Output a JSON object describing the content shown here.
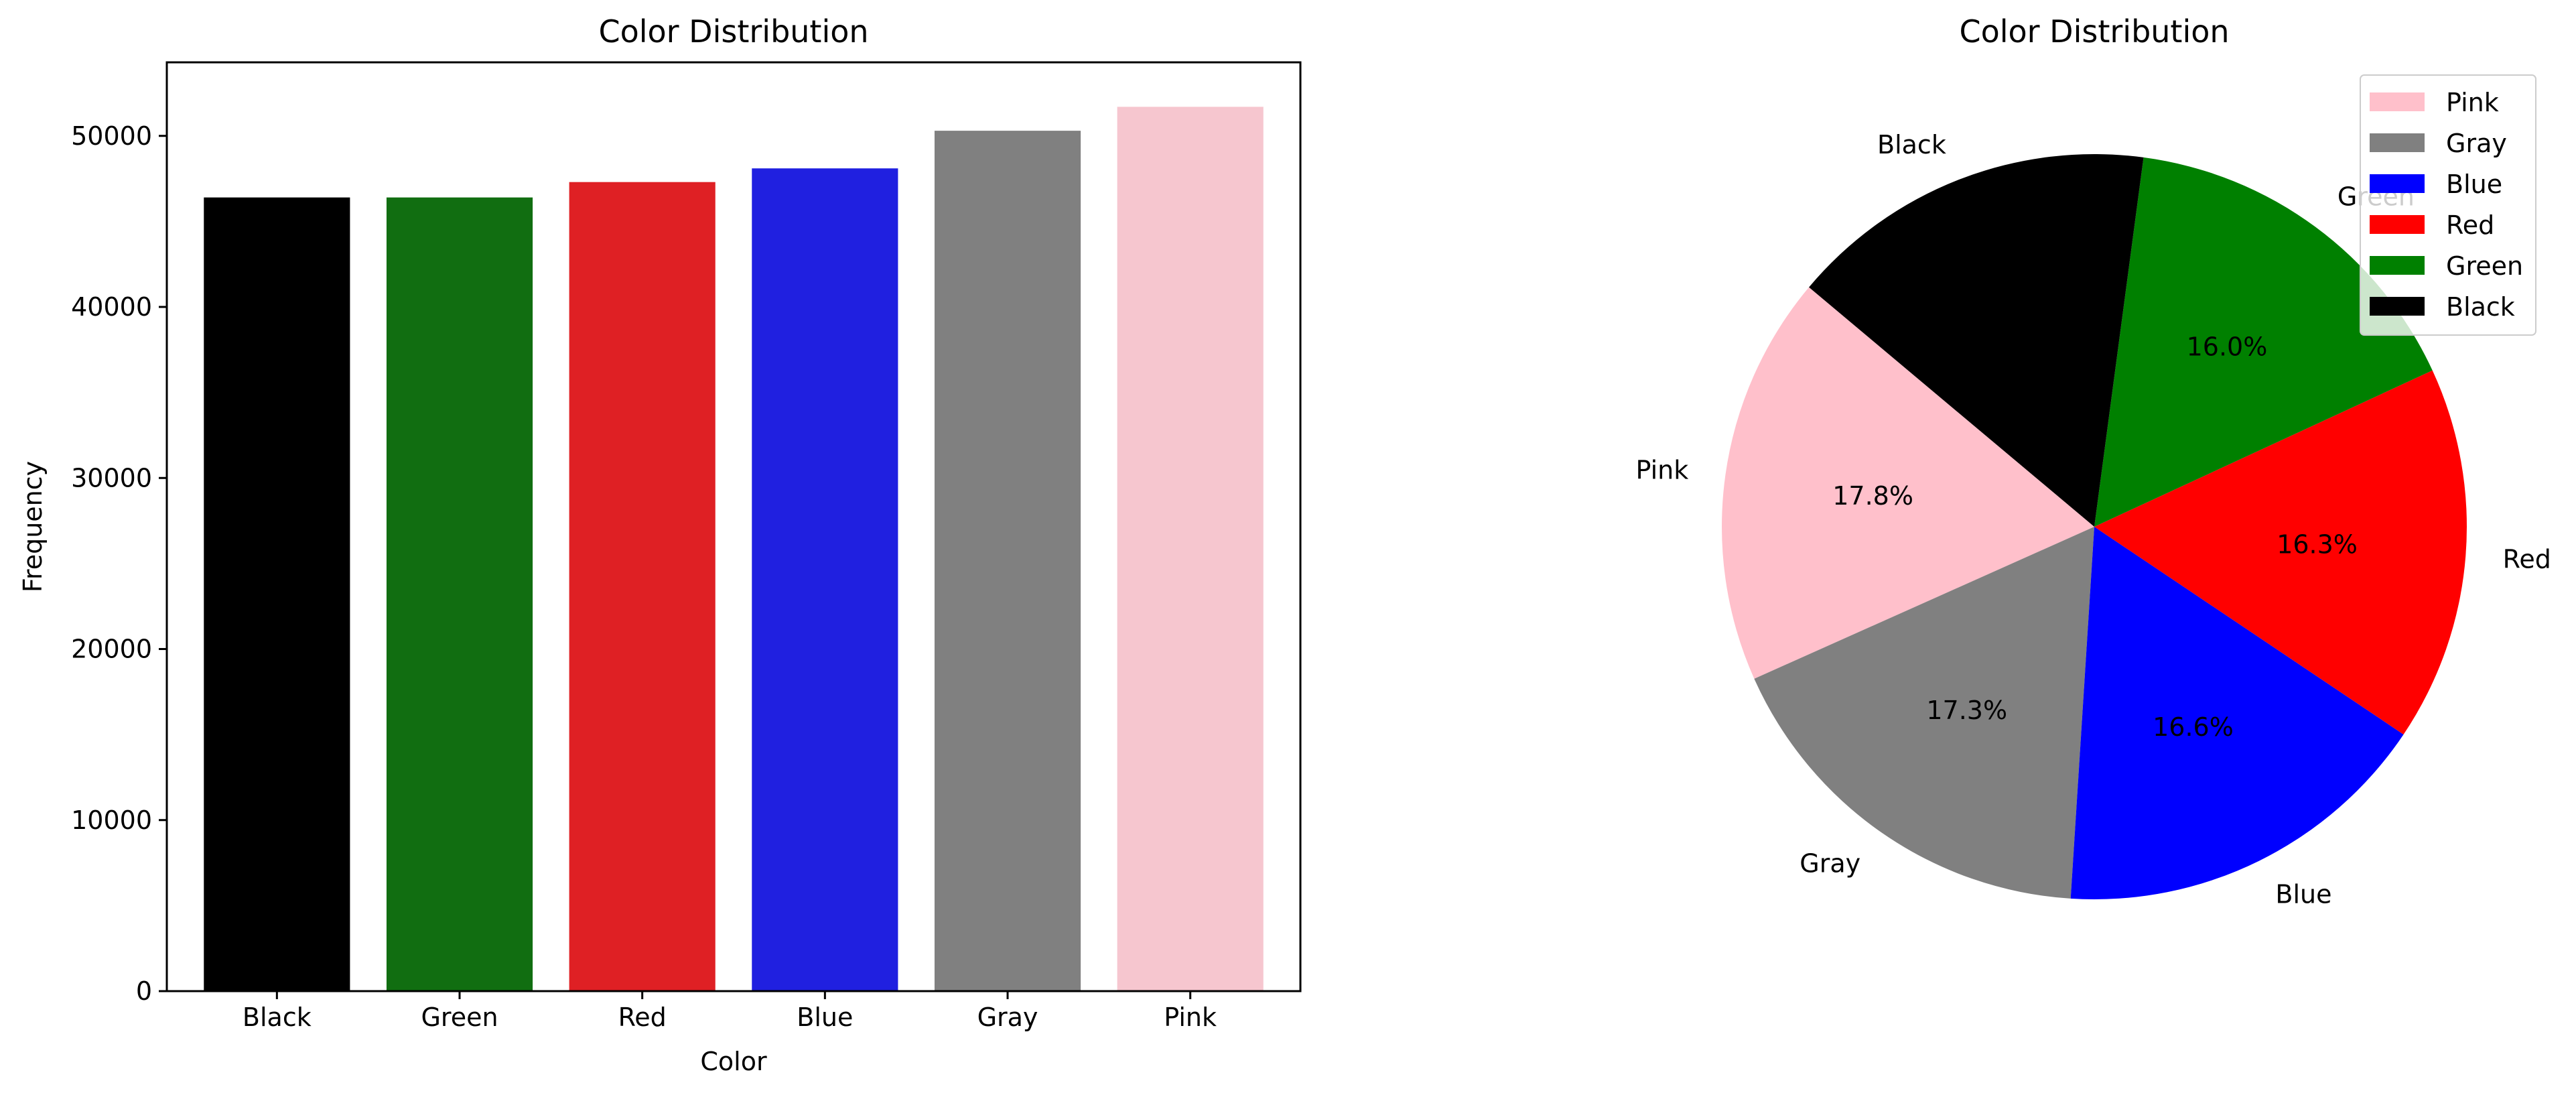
{
  "chart_data": [
    {
      "type": "bar",
      "title": "Color Distribution",
      "xlabel": "Color",
      "ylabel": "Frequency",
      "categories": [
        "Black",
        "Green",
        "Red",
        "Blue",
        "Gray",
        "Pink"
      ],
      "values": [
        46400,
        46400,
        47300,
        48100,
        50300,
        51700
      ],
      "colors": [
        "#000000",
        "#116e11",
        "#df2024",
        "#2020e0",
        "#808080",
        "#f6c6cf"
      ],
      "ylim": [
        0,
        54300
      ],
      "yticks": [
        0,
        10000,
        20000,
        30000,
        40000,
        50000
      ],
      "grid": false
    },
    {
      "type": "pie",
      "title": "Color Distribution",
      "labels": [
        "Pink",
        "Gray",
        "Blue",
        "Red",
        "Green",
        "Black"
      ],
      "values": [
        17.8,
        17.3,
        16.6,
        16.3,
        16.0,
        16.0
      ],
      "percent_labels": [
        "17.8%",
        "17.3%",
        "16.6%",
        "16.3%",
        "16.0%",
        ""
      ],
      "colors": [
        "#ffc0cb",
        "#808080",
        "#0000ff",
        "#ff0000",
        "#008000",
        "#000000"
      ],
      "start_angle": 140,
      "direction": "counterclockwise",
      "legend": {
        "position": "top-right",
        "entries": [
          "Pink",
          "Gray",
          "Blue",
          "Red",
          "Green",
          "Black"
        ]
      }
    }
  ]
}
